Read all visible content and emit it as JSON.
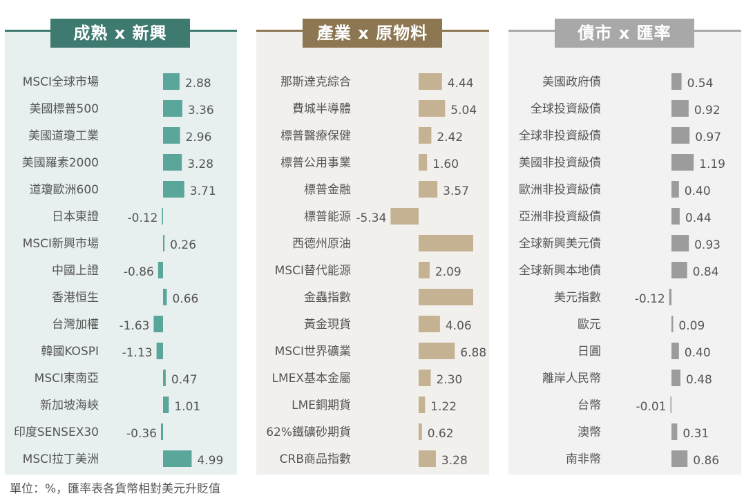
{
  "footnote": "單位：%，匯率表各貨幣相對美元升貶值",
  "panels": [
    {
      "title": "成熟 x 新興",
      "accent": "#3e7a70",
      "bg": "#e8efef",
      "bar_color": "#5aa69b"
    },
    {
      "title": "產業 x 原物料",
      "accent": "#8c7752",
      "bg": "#f2f0ed",
      "bar_color": "#c4b292"
    },
    {
      "title": "債市 x 匯率",
      "accent": "#a8a8a8",
      "bg": "#f2f2f2",
      "bar_color": "#9c9c9c"
    }
  ],
  "chart_data": [
    {
      "type": "bar",
      "orientation": "horizontal",
      "title": "成熟 x 新興",
      "categories": [
        "MSCI全球市場",
        "美國標普500",
        "美國道瓊工業",
        "美國羅素2000",
        "道瓊歐洲600",
        "日本東證",
        "MSCI新興市場",
        "中國上證",
        "香港恒生",
        "台灣加權",
        "韓國KOSPI",
        "MSCI東南亞",
        "新加坡海峽",
        "印度SENSEX30",
        "MSCI拉丁美洲"
      ],
      "values": [
        2.88,
        3.36,
        2.96,
        3.28,
        3.71,
        -0.12,
        0.26,
        -0.86,
        0.66,
        -1.63,
        -1.13,
        0.47,
        1.01,
        -0.36,
        4.99
      ],
      "value_labels": [
        "2.88",
        "3.36",
        "2.96",
        "3.28",
        "3.71",
        "-0.12",
        "0.26",
        "-0.86",
        "0.66",
        "-1.63",
        "-1.13",
        "0.47",
        "1.01",
        "-0.36",
        "4.99"
      ],
      "unit": "%"
    },
    {
      "type": "bar",
      "orientation": "horizontal",
      "title": "產業 x 原物料",
      "categories": [
        "那斯達克綜合",
        "費城半導體",
        "標普醫療保健",
        "標普公用事業",
        "標普金融",
        "標普能源",
        "西德州原油",
        "MSCI替代能源",
        "金蟲指數",
        "黃金現貨",
        "MSCI世界礦業",
        "LMEX基本金屬",
        "LME銅期貨",
        "62%鐵礦砂期貨",
        "CRB商品指數"
      ],
      "values": [
        4.44,
        5.04,
        2.42,
        1.6,
        3.57,
        -5.34,
        10.5,
        2.09,
        10.5,
        4.06,
        6.88,
        2.3,
        1.22,
        0.62,
        3.28
      ],
      "value_labels": [
        "4.44",
        "5.04",
        "2.42",
        "1.60",
        "3.57",
        "-5.34",
        "",
        "2.09",
        "",
        "4.06",
        "6.88",
        "2.30",
        "1.22",
        "0.62",
        "3.28"
      ],
      "unit": "%"
    },
    {
      "type": "bar",
      "orientation": "horizontal",
      "title": "債市 x 匯率",
      "categories": [
        "美國政府債",
        "全球投資級債",
        "全球非投資級債",
        "美國非投資級債",
        "歐洲非投資級債",
        "亞洲非投資級債",
        "全球新興美元債",
        "全球新興本地債",
        "美元指數",
        "歐元",
        "日圓",
        "離岸人民幣",
        "台幣",
        "澳幣",
        "南非幣"
      ],
      "values": [
        0.54,
        0.92,
        0.97,
        1.19,
        0.4,
        0.44,
        0.93,
        0.84,
        -0.12,
        0.09,
        0.4,
        0.48,
        -0.01,
        0.31,
        0.86
      ],
      "value_labels": [
        "0.54",
        "0.92",
        "0.97",
        "1.19",
        "0.40",
        "0.44",
        "0.93",
        "0.84",
        "-0.12",
        "0.09",
        "0.40",
        "0.48",
        "-0.01",
        "0.31",
        "0.86"
      ],
      "unit": "%"
    }
  ]
}
